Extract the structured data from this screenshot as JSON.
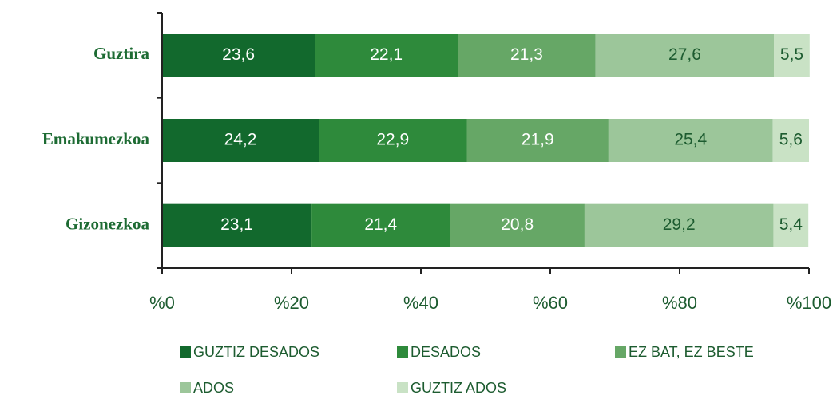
{
  "chart_data": {
    "type": "stacked_barh",
    "categories": [
      "Guztira",
      "Emakumezkoa",
      "Gizonezkoa"
    ],
    "series": [
      {
        "name": "GUZTIZ DESADOS",
        "color": "#12692d",
        "values": [
          23.6,
          24.2,
          23.1
        ],
        "value_labels": [
          "23,6",
          "24,2",
          "23,1"
        ]
      },
      {
        "name": "DESADOS",
        "color": "#2e8a3b",
        "values": [
          22.1,
          22.9,
          21.4
        ],
        "value_labels": [
          "22,1",
          "22,9",
          "21,4"
        ]
      },
      {
        "name": "EZ BAT, EZ BESTE",
        "color": "#66a766",
        "values": [
          21.3,
          21.9,
          20.8
        ],
        "value_labels": [
          "21,3",
          "21,9",
          "20,8"
        ]
      },
      {
        "name": "ADOS",
        "color": "#9cc69a",
        "values": [
          27.6,
          25.4,
          29.2
        ],
        "value_labels": [
          "27,6",
          "25,4",
          "29,2"
        ]
      },
      {
        "name": "GUZTIZ ADOS",
        "color": "#c9e2c5",
        "values": [
          5.5,
          5.6,
          5.4
        ],
        "value_labels": [
          "5,5",
          "5,6",
          "5,4"
        ]
      }
    ],
    "xlim": [
      0,
      100
    ],
    "xticks": [
      {
        "value": 0,
        "label": "%0"
      },
      {
        "value": 20,
        "label": "%20"
      },
      {
        "value": 40,
        "label": "%40"
      },
      {
        "value": 60,
        "label": "%60"
      },
      {
        "value": 80,
        "label": "%80"
      },
      {
        "value": 100,
        "label": "%100"
      }
    ]
  }
}
